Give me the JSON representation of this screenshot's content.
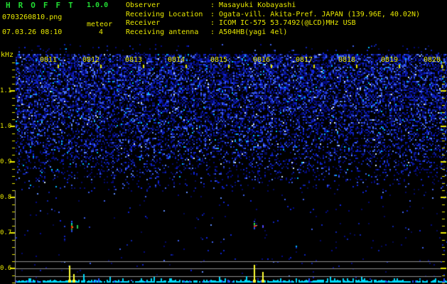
{
  "app": {
    "title": "HROFFT",
    "version": "1.0.0",
    "filename": "0703260810.png",
    "datetime": "07.03.26 08:10",
    "meteor_label": "meteor",
    "meteor_count": "4"
  },
  "header_info": {
    "separator": ": ",
    "rows": [
      {
        "label": "Observer",
        "value": "Masayuki Kobayashi"
      },
      {
        "label": "Receiving Location",
        "value": "Ogata-vill. Akita-Pref. JAPAN (139.96E, 40.02N)"
      },
      {
        "label": "Receiver",
        "value": "ICOM IC-575 53.7492(@LCD)MHz USB"
      },
      {
        "label": "Receiving antenna",
        "value": "A504HB(yagi 4el)"
      }
    ]
  },
  "spectrogram": {
    "unit_label": "kHz",
    "freq_labels": [
      "1.1",
      "1.0",
      "0.9",
      "0.8",
      "0.7",
      "0.6"
    ],
    "freq_tick_y": [
      128,
      178,
      228,
      278,
      328,
      378
    ],
    "time_labels": [
      "0811",
      "0812",
      "0813",
      "0814",
      "0815",
      "0816",
      "0817",
      "0818",
      "0819",
      "0820"
    ],
    "time_tick_x": [
      68,
      128,
      188,
      248,
      308,
      368,
      428,
      488,
      548,
      608
    ],
    "colors": {
      "text_yellow": "#e8e800",
      "text_green": "#22dd33",
      "grid_gray": "#8f8f8f",
      "cyan": "#00dcff",
      "spike_yellow": "#ffff33"
    },
    "grid_lines_y": [
      368,
      378,
      389
    ],
    "echoes": [
      [
        90,
        318,
        2,
        2,
        "#2244dd"
      ],
      [
        100,
        311,
        2,
        2,
        "#2255ff"
      ],
      [
        100,
        314,
        2,
        2,
        "#00ddcc"
      ],
      [
        100,
        316,
        2,
        2,
        "#22cc44"
      ],
      [
        100,
        318,
        2,
        2,
        "#ff3300"
      ],
      [
        102,
        319,
        1,
        2,
        "#ffbb00"
      ],
      [
        100,
        320,
        2,
        2,
        "#cc2200"
      ],
      [
        100,
        322,
        2,
        2,
        "#22aa44"
      ],
      [
        100,
        324,
        2,
        3,
        "#2244dd"
      ],
      [
        108,
        317,
        2,
        5,
        "#22cc55"
      ],
      [
        125,
        319,
        2,
        2,
        "#2233bb"
      ],
      [
        357,
        311,
        2,
        2,
        "#2244dd"
      ],
      [
        357,
        314,
        2,
        2,
        "#33ee55"
      ],
      [
        357,
        316,
        2,
        2,
        "#22aa44"
      ],
      [
        359,
        317,
        2,
        2,
        "#ff3322"
      ],
      [
        361,
        317,
        1,
        1,
        "#99ffff"
      ],
      [
        357,
        318,
        2,
        2,
        "#dd2233"
      ],
      [
        357,
        320,
        2,
        3,
        "#2255ee"
      ],
      [
        369,
        317,
        2,
        4,
        "#3344ee"
      ],
      [
        370,
        318,
        1,
        2,
        "#8844ff"
      ]
    ],
    "signal": {
      "yellow_spikes": [
        [
          97,
          374
        ],
        [
          103,
          386
        ],
        [
          357,
          373
        ],
        [
          369,
          383
        ]
      ],
      "cyan_spikes": [
        [
          117,
          386
        ],
        [
          346,
          389
        ]
      ]
    }
  }
}
